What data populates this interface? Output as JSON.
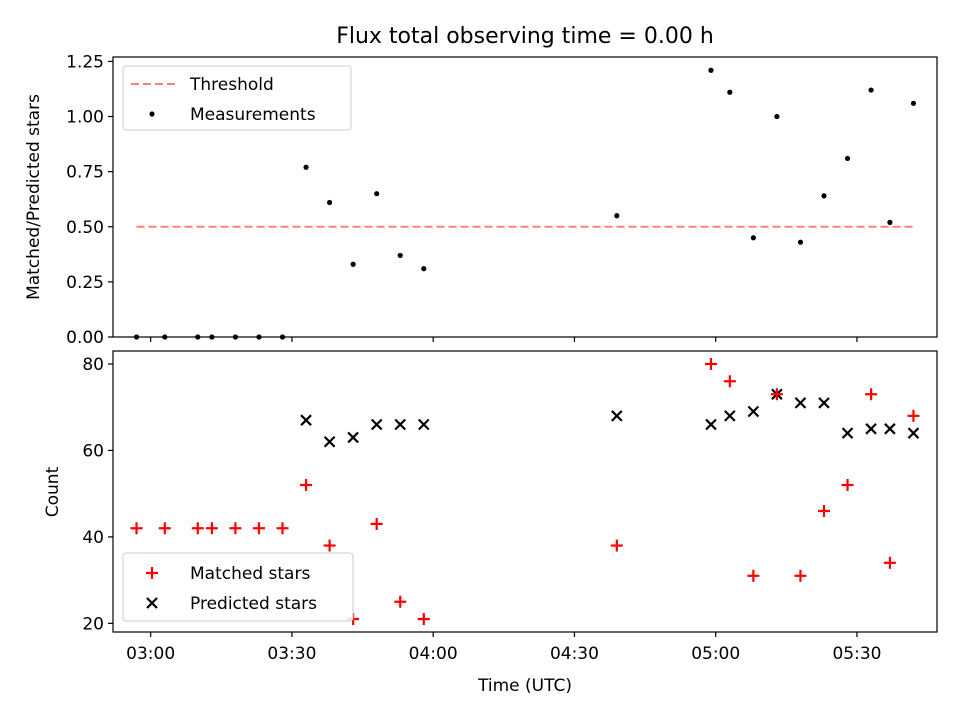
{
  "chart_data": [
    {
      "type": "scatter",
      "title": "Flux total observing time = 0.00 h",
      "xlabel": "",
      "ylabel": "Matched/Predicted stars",
      "ylim": [
        0,
        1.27
      ],
      "y_ticks": [
        "0.00",
        "0.25",
        "0.50",
        "0.75",
        "1.00",
        "1.25"
      ],
      "y_tick_values": [
        0,
        0.25,
        0.5,
        0.75,
        1.0,
        1.25
      ],
      "threshold": {
        "name": "Threshold",
        "color": "#ff7f7f",
        "style": "dashed",
        "value": 0.5,
        "x_start": "02:57",
        "x_end": "05:42"
      },
      "legend": [
        "Threshold",
        "Measurements"
      ],
      "legend_position": "upper-left",
      "series": [
        {
          "name": "Measurements",
          "color": "#000000",
          "marker": "dot",
          "points": [
            [
              "02:57",
              0.0
            ],
            [
              "03:03",
              0.0
            ],
            [
              "03:10",
              0.0
            ],
            [
              "03:13",
              0.0
            ],
            [
              "03:18",
              0.0
            ],
            [
              "03:23",
              0.0
            ],
            [
              "03:28",
              0.0
            ],
            [
              "03:33",
              0.77
            ],
            [
              "03:38",
              0.61
            ],
            [
              "03:43",
              0.33
            ],
            [
              "03:48",
              0.65
            ],
            [
              "03:53",
              0.37
            ],
            [
              "03:58",
              0.31
            ],
            [
              "04:39",
              0.55
            ],
            [
              "04:59",
              1.21
            ],
            [
              "05:03",
              1.11
            ],
            [
              "05:08",
              0.45
            ],
            [
              "05:13",
              1.0
            ],
            [
              "05:18",
              0.43
            ],
            [
              "05:23",
              0.64
            ],
            [
              "05:28",
              0.81
            ],
            [
              "05:33",
              1.12
            ],
            [
              "05:37",
              0.52
            ],
            [
              "05:42",
              1.06
            ]
          ]
        }
      ]
    },
    {
      "type": "scatter",
      "title": "",
      "xlabel": "Time (UTC)",
      "ylabel": "Count",
      "ylim": [
        18,
        83
      ],
      "y_ticks": [
        "20",
        "40",
        "60",
        "80"
      ],
      "y_tick_values": [
        20,
        40,
        60,
        80
      ],
      "x_ticks": [
        "03:00",
        "03:30",
        "04:00",
        "04:30",
        "05:00",
        "05:30"
      ],
      "xlim": [
        "02:52",
        "05:47"
      ],
      "legend": [
        "Matched stars",
        "Predicted stars"
      ],
      "legend_position": "lower-left",
      "series": [
        {
          "name": "Matched stars",
          "color": "#ff0000",
          "marker": "plus",
          "points": [
            [
              "02:57",
              42
            ],
            [
              "03:03",
              42
            ],
            [
              "03:10",
              42
            ],
            [
              "03:13",
              42
            ],
            [
              "03:18",
              42
            ],
            [
              "03:23",
              42
            ],
            [
              "03:28",
              42
            ],
            [
              "03:33",
              52
            ],
            [
              "03:38",
              38
            ],
            [
              "03:43",
              21
            ],
            [
              "03:48",
              43
            ],
            [
              "03:53",
              25
            ],
            [
              "03:58",
              21
            ],
            [
              "04:39",
              38
            ],
            [
              "04:59",
              80
            ],
            [
              "05:03",
              76
            ],
            [
              "05:08",
              31
            ],
            [
              "05:13",
              73
            ],
            [
              "05:18",
              31
            ],
            [
              "05:23",
              46
            ],
            [
              "05:28",
              52
            ],
            [
              "05:33",
              73
            ],
            [
              "05:37",
              34
            ],
            [
              "05:42",
              68
            ]
          ]
        },
        {
          "name": "Predicted stars",
          "color": "#000000",
          "marker": "x",
          "points": [
            [
              "03:33",
              67
            ],
            [
              "03:38",
              62
            ],
            [
              "03:43",
              63
            ],
            [
              "03:48",
              66
            ],
            [
              "03:53",
              66
            ],
            [
              "03:58",
              66
            ],
            [
              "04:39",
              68
            ],
            [
              "04:59",
              66
            ],
            [
              "05:03",
              68
            ],
            [
              "05:08",
              69
            ],
            [
              "05:13",
              73
            ],
            [
              "05:18",
              71
            ],
            [
              "05:23",
              71
            ],
            [
              "05:28",
              64
            ],
            [
              "05:33",
              65
            ],
            [
              "05:37",
              65
            ],
            [
              "05:42",
              64
            ]
          ]
        }
      ]
    }
  ]
}
